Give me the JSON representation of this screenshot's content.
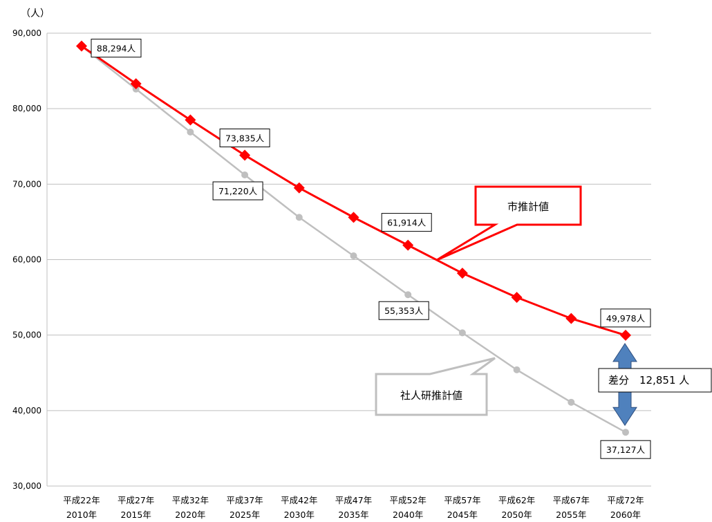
{
  "chart_data": {
    "type": "line",
    "ylabel": "（人）",
    "ylim": [
      30000,
      90000
    ],
    "yticks": [
      {
        "value": 90000,
        "label": "90,000"
      },
      {
        "value": 80000,
        "label": "80,000"
      },
      {
        "value": 70000,
        "label": "70,000"
      },
      {
        "value": 60000,
        "label": "60,000"
      },
      {
        "value": 50000,
        "label": "50,000"
      },
      {
        "value": 40000,
        "label": "40,000"
      },
      {
        "value": 30000,
        "label": "30,000"
      }
    ],
    "grid": true,
    "categories": [
      {
        "era": "平成22年",
        "year": "2010年"
      },
      {
        "era": "平成27年",
        "year": "2015年"
      },
      {
        "era": "平成32年",
        "year": "2020年"
      },
      {
        "era": "平成37年",
        "year": "2025年"
      },
      {
        "era": "平成42年",
        "year": "2030年"
      },
      {
        "era": "平成47年",
        "year": "2035年"
      },
      {
        "era": "平成52年",
        "year": "2040年"
      },
      {
        "era": "平成57年",
        "year": "2045年"
      },
      {
        "era": "平成62年",
        "year": "2050年"
      },
      {
        "era": "平成67年",
        "year": "2055年"
      },
      {
        "era": "平成72年",
        "year": "2060年"
      }
    ],
    "series": [
      {
        "name": "市推計値",
        "color": "#ff0000",
        "marker": "diamond",
        "values": [
          88294,
          83300,
          78500,
          73835,
          69500,
          65600,
          61914,
          58200,
          55000,
          52200,
          49978
        ]
      },
      {
        "name": "社人研推計値",
        "color": "#bfbfbf",
        "marker": "circle",
        "values": [
          88294,
          82600,
          76900,
          71220,
          65600,
          60500,
          55353,
          50300,
          45400,
          41100,
          37127
        ]
      }
    ],
    "data_labels": [
      {
        "series": 0,
        "index": 0,
        "text": "88,294人"
      },
      {
        "series": 0,
        "index": 3,
        "text": "73,835人"
      },
      {
        "series": 1,
        "index": 3,
        "text": "71,220人"
      },
      {
        "series": 0,
        "index": 6,
        "text": "61,914人"
      },
      {
        "series": 1,
        "index": 6,
        "text": "55,353人"
      },
      {
        "series": 0,
        "index": 10,
        "text": "49,978人"
      },
      {
        "series": 1,
        "index": 10,
        "text": "37,127人"
      }
    ],
    "callouts": [
      {
        "series": 0,
        "text": "市推計値",
        "color": "#ff0000"
      },
      {
        "series": 1,
        "text": "社人研推計値",
        "color": "#bfbfbf"
      }
    ],
    "difference": {
      "label": "差分　12,851 人",
      "arrow_color": "#4f81bd"
    }
  }
}
